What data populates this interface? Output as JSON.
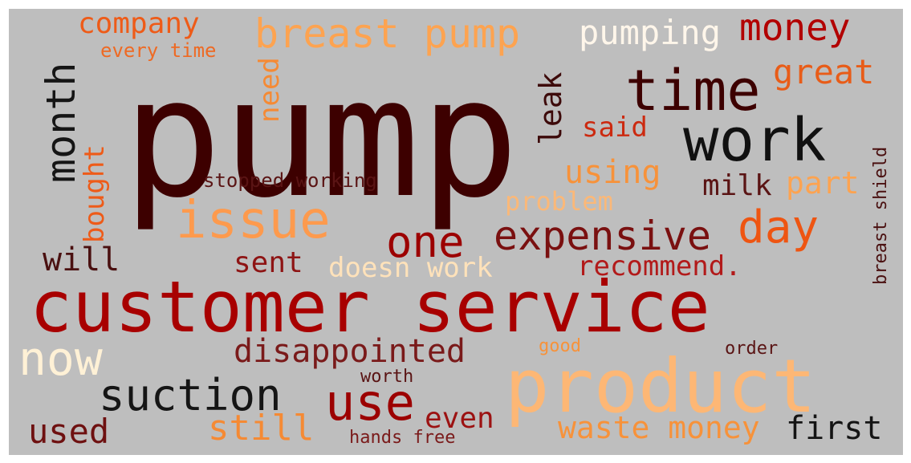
{
  "colors": {
    "background": "#bebebe",
    "frame": "#ffffff"
  },
  "words": [
    {
      "text": "pump",
      "color": "#3d0000"
    },
    {
      "text": "customer service",
      "color": "#a80000"
    },
    {
      "text": "product",
      "color": "#fdb775"
    },
    {
      "text": "work",
      "color": "#111111"
    },
    {
      "text": "time",
      "color": "#3d0000"
    },
    {
      "text": "issue",
      "color": "#fd9a4d"
    },
    {
      "text": "expensive",
      "color": "#7a1010"
    },
    {
      "text": "one",
      "color": "#9c0000"
    },
    {
      "text": "suction",
      "color": "#151515"
    },
    {
      "text": "use",
      "color": "#9c0000"
    },
    {
      "text": "day",
      "color": "#ee5512"
    },
    {
      "text": "now",
      "color": "#fff1d6"
    },
    {
      "text": "breast pump",
      "color": "#fda350"
    },
    {
      "text": "money",
      "color": "#b20000"
    },
    {
      "text": "company",
      "color": "#ee5b18"
    },
    {
      "text": "pumping",
      "color": "#fff6ea"
    },
    {
      "text": "disappointed",
      "color": "#7a1a1a"
    },
    {
      "text": "month",
      "color": "#151515"
    },
    {
      "text": "great",
      "color": "#e85c18"
    },
    {
      "text": "still",
      "color": "#f58a34"
    },
    {
      "text": "used",
      "color": "#6e1010"
    },
    {
      "text": "waste money",
      "color": "#f7923a"
    },
    {
      "text": "first",
      "color": "#141414"
    },
    {
      "text": "even",
      "color": "#9c1212"
    },
    {
      "text": "using",
      "color": "#f7923a"
    },
    {
      "text": "bought",
      "color": "#ee5b18"
    },
    {
      "text": "will",
      "color": "#4a1010"
    },
    {
      "text": "sent",
      "color": "#8e1414"
    },
    {
      "text": "doesn work",
      "color": "#ffe2ba"
    },
    {
      "text": "recommend.",
      "color": "#b21a1a"
    },
    {
      "text": "leak",
      "color": "#3d0a0a"
    },
    {
      "text": "part",
      "color": "#fda350"
    },
    {
      "text": "milk",
      "color": "#5a1414"
    },
    {
      "text": "said",
      "color": "#cc2a10"
    },
    {
      "text": "problem",
      "color": "#fbb878"
    },
    {
      "text": "need",
      "color": "#f58a34"
    },
    {
      "text": "stopped working",
      "color": "#5a1414"
    },
    {
      "text": "every time",
      "color": "#ee6a24"
    },
    {
      "text": "breast shield",
      "color": "#4a1010"
    },
    {
      "text": "good",
      "color": "#f7923a"
    },
    {
      "text": "order",
      "color": "#5a1414"
    },
    {
      "text": "worth",
      "color": "#5a1414"
    },
    {
      "text": "hands free",
      "color": "#7a1a1a"
    }
  ]
}
